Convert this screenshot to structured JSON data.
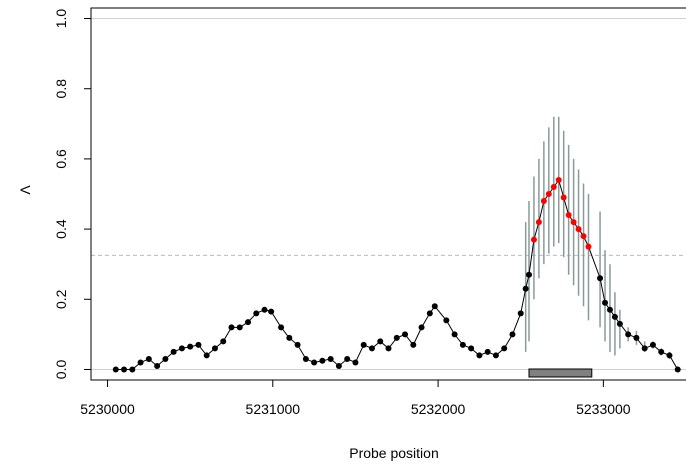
{
  "chart_data": {
    "type": "scatter",
    "title": "",
    "xlabel": "Probe position",
    "ylabel": "Λ",
    "xlim": [
      5229900,
      5233500
    ],
    "ylim": [
      -0.03,
      1.03
    ],
    "x_ticks": [
      5230000,
      5231000,
      5232000,
      5233000
    ],
    "x_tick_labels": [
      "5230000",
      "5231000",
      "5232000",
      "5233000"
    ],
    "y_ticks": [
      0.0,
      0.2,
      0.4,
      0.6,
      0.8,
      1.0
    ],
    "y_tick_labels": [
      "0.0",
      "0.2",
      "0.4",
      "0.6",
      "0.8",
      "1.0"
    ],
    "reference_lines": [
      {
        "y": 1.0,
        "style": "solid",
        "color": "#d0d0d0"
      },
      {
        "y": 0.0,
        "style": "solid",
        "color": "#d0d0d0"
      },
      {
        "y": 0.325,
        "style": "dashed",
        "color": "#bbbbbb"
      }
    ],
    "region_bar": {
      "x_start": 5232550,
      "x_end": 5232930,
      "color": "#808080"
    },
    "colors": {
      "point": "#000000",
      "highlight": "#ff0000",
      "error_bar": "#8a9a9a"
    },
    "series": [
      {
        "marker": "filled-circle",
        "color": "#000000",
        "x": [
          5230050,
          5230100,
          5230150,
          5230200,
          5230250,
          5230300,
          5230350,
          5230400,
          5230450,
          5230500,
          5230550,
          5230600,
          5230650,
          5230700,
          5230750,
          5230800,
          5230850,
          5230900,
          5230950,
          5230990,
          5231050,
          5231100,
          5231150,
          5231200,
          5231250,
          5231300,
          5231350,
          5231400,
          5231450,
          5231500,
          5231550,
          5231600,
          5231650,
          5231700,
          5231750,
          5231800,
          5231850,
          5231900,
          5231950,
          5231980,
          5232050,
          5232100,
          5232150,
          5232200,
          5232250,
          5232300,
          5232350,
          5232400,
          5232450,
          5232500
        ],
        "y": [
          0.0,
          0.0,
          0.0,
          0.02,
          0.03,
          0.01,
          0.03,
          0.05,
          0.06,
          0.065,
          0.07,
          0.04,
          0.06,
          0.08,
          0.12,
          0.12,
          0.135,
          0.16,
          0.17,
          0.165,
          0.12,
          0.09,
          0.07,
          0.03,
          0.02,
          0.025,
          0.03,
          0.01,
          0.03,
          0.02,
          0.07,
          0.06,
          0.08,
          0.06,
          0.09,
          0.1,
          0.07,
          0.12,
          0.16,
          0.18,
          0.14,
          0.1,
          0.07,
          0.06,
          0.04,
          0.05,
          0.04,
          0.06,
          0.1,
          0.16
        ]
      },
      {
        "marker": "filled-circle",
        "color": "#000000",
        "error_bars": true,
        "x": [
          5232530,
          5232550,
          5232980,
          5233010,
          5233040,
          5233070,
          5233100,
          5233150,
          5233200,
          5233250,
          5233300,
          5233350,
          5233400,
          5233450
        ],
        "y": [
          0.23,
          0.27,
          0.26,
          0.19,
          0.17,
          0.15,
          0.13,
          0.1,
          0.09,
          0.06,
          0.07,
          0.05,
          0.04,
          0.0
        ],
        "y_low": [
          0.05,
          0.08,
          0.12,
          0.08,
          0.05,
          0.04,
          0.06,
          0.08,
          0.07,
          0.05,
          0.06,
          0.04,
          0.03,
          0.0
        ],
        "y_high": [
          0.42,
          0.48,
          0.45,
          0.34,
          0.3,
          0.22,
          0.17,
          0.12,
          0.11,
          0.08,
          0.08,
          0.06,
          0.05,
          0.0
        ]
      },
      {
        "marker": "filled-circle",
        "color": "#ff0000",
        "error_bars": true,
        "x": [
          5232580,
          5232610,
          5232640,
          5232670,
          5232700,
          5232730,
          5232760,
          5232790,
          5232820,
          5232850,
          5232880,
          5232910
        ],
        "y": [
          0.37,
          0.42,
          0.48,
          0.5,
          0.52,
          0.54,
          0.49,
          0.44,
          0.42,
          0.4,
          0.38,
          0.35
        ],
        "y_low": [
          0.2,
          0.26,
          0.3,
          0.33,
          0.35,
          0.36,
          0.32,
          0.27,
          0.24,
          0.21,
          0.18,
          0.14
        ],
        "y_high": [
          0.55,
          0.6,
          0.65,
          0.69,
          0.72,
          0.72,
          0.68,
          0.64,
          0.6,
          0.57,
          0.53,
          0.5
        ]
      }
    ]
  }
}
